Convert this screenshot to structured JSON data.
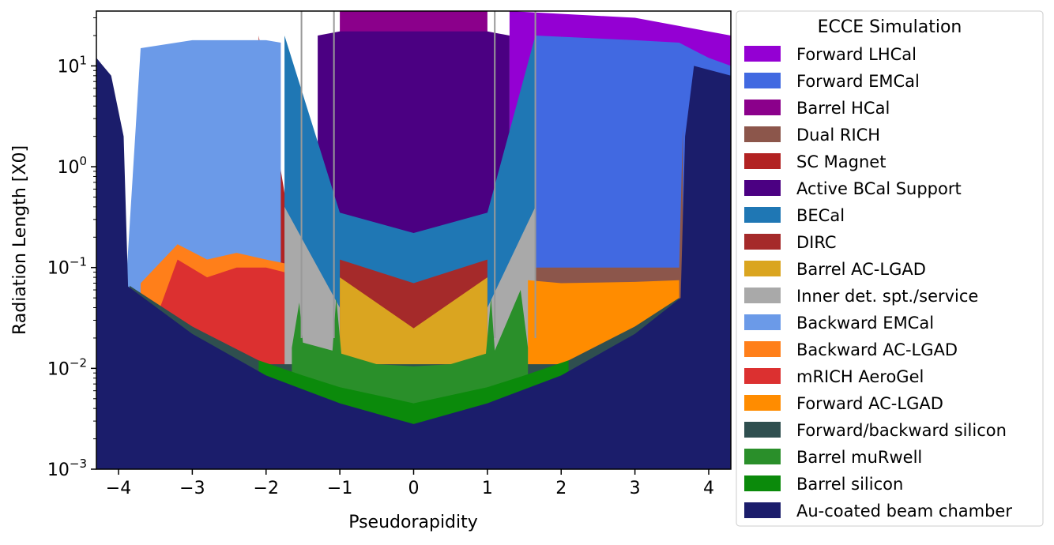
{
  "chart_data": {
    "type": "area",
    "stacked": true,
    "xlabel": "Pseudorapidity",
    "ylabel": "Radiation Length [X0]",
    "xlim": [
      -4.3,
      4.3
    ],
    "ylim": [
      0.001,
      35
    ],
    "yscale": "log",
    "grid": false,
    "x_ticks": [
      {
        "value": -4,
        "label": "−4"
      },
      {
        "value": -3,
        "label": "−3"
      },
      {
        "value": -2,
        "label": "−2"
      },
      {
        "value": -1,
        "label": "−1"
      },
      {
        "value": 0,
        "label": "0"
      },
      {
        "value": 1,
        "label": "1"
      },
      {
        "value": 2,
        "label": "2"
      },
      {
        "value": 3,
        "label": "3"
      },
      {
        "value": 4,
        "label": "4"
      }
    ],
    "y_ticks": [
      {
        "value": 0.001,
        "base": "10",
        "exp": "−3"
      },
      {
        "value": 0.01,
        "base": "10",
        "exp": "−2"
      },
      {
        "value": 0.1,
        "base": "10",
        "exp": "−1"
      },
      {
        "value": 1,
        "base": "10",
        "exp": "0"
      },
      {
        "value": 10,
        "base": "10",
        "exp": "1"
      }
    ],
    "legend": {
      "title": "ECCE Simulation",
      "position": "right-outside"
    },
    "layers": [
      {
        "name": "Au-coated beam chamber",
        "color": "#1b1d6b",
        "cumulative": [
          [
            -4.3,
            12
          ],
          [
            -4.1,
            8
          ],
          [
            -3.93,
            2
          ],
          [
            -3.87,
            0.065
          ],
          [
            -3.0,
            0.022
          ],
          [
            -2.0,
            0.0085
          ],
          [
            -1.0,
            0.0045
          ],
          [
            0,
            0.0028
          ],
          [
            1.0,
            0.0045
          ],
          [
            2.0,
            0.0085
          ],
          [
            3.0,
            0.022
          ],
          [
            3.62,
            0.05
          ],
          [
            3.68,
            2
          ],
          [
            3.8,
            10
          ],
          [
            4.3,
            8
          ]
        ]
      },
      {
        "name": "Barrel silicon",
        "color": "#0b8a0b",
        "cumulative": [
          [
            -2.1,
            0.012
          ],
          [
            -1.5,
            0.0085
          ],
          [
            -1.0,
            0.0065
          ],
          [
            0,
            0.0045
          ],
          [
            1.0,
            0.0065
          ],
          [
            1.5,
            0.0085
          ],
          [
            2.1,
            0.012
          ]
        ]
      },
      {
        "name": "Barrel muRwell",
        "color": "#2a8f2a",
        "cumulative": [
          [
            -1.65,
            0.016
          ],
          [
            -1.55,
            0.045
          ],
          [
            -1.5,
            0.018
          ],
          [
            -1.1,
            0.015
          ],
          [
            -1.05,
            0.05
          ],
          [
            -0.98,
            0.014
          ],
          [
            -0.5,
            0.011
          ],
          [
            0,
            0.0105
          ],
          [
            0.5,
            0.011
          ],
          [
            0.98,
            0.014
          ],
          [
            1.05,
            0.05
          ],
          [
            1.1,
            0.015
          ],
          [
            1.45,
            0.06
          ],
          [
            1.55,
            0.016
          ]
        ]
      },
      {
        "name": "Forward/backward silicon",
        "color": "#2f4f4f",
        "cumulative": [
          [
            -3.85,
            0.066
          ],
          [
            -3.0,
            0.026
          ],
          [
            -2.0,
            0.011
          ],
          [
            2.0,
            0.011
          ],
          [
            3.0,
            0.026
          ],
          [
            3.6,
            0.05
          ]
        ]
      },
      {
        "name": "Forward AC-LGAD",
        "color": "#ff8c00",
        "cumulative": [
          [
            1.55,
            0.075
          ],
          [
            2.0,
            0.07
          ],
          [
            3.0,
            0.072
          ],
          [
            3.6,
            0.075
          ]
        ]
      },
      {
        "name": "mRICH AeroGel",
        "color": "#dc3030",
        "cumulative": [
          [
            -3.5,
            0.03
          ],
          [
            -3.2,
            0.12
          ],
          [
            -2.8,
            0.08
          ],
          [
            -2.4,
            0.1
          ],
          [
            -2.0,
            0.1
          ],
          [
            -1.75,
            0.09
          ]
        ]
      },
      {
        "name": "Backward AC-LGAD",
        "color": "#ff7f1a",
        "cumulative": [
          [
            -3.7,
            0.07
          ],
          [
            -3.2,
            0.17
          ],
          [
            -2.8,
            0.12
          ],
          [
            -2.4,
            0.14
          ],
          [
            -2.0,
            0.12
          ],
          [
            -1.75,
            0.11
          ]
        ]
      },
      {
        "name": "Backward EMCal",
        "color": "#6b9ae8",
        "cumulative": [
          [
            -3.9,
            0.065
          ],
          [
            -3.7,
            15
          ],
          [
            -3.0,
            18
          ],
          [
            -2.0,
            18
          ],
          [
            -1.8,
            17
          ]
        ]
      },
      {
        "name": "Inner det. spt./service",
        "color": "#a9a9a9",
        "cumulative": [
          [
            -1.75,
            0.4
          ],
          [
            -1.0,
            0.04
          ],
          [
            0,
            0.013
          ],
          [
            1.0,
            0.04
          ],
          [
            1.65,
            0.4
          ]
        ]
      },
      {
        "name": "Barrel AC-LGAD",
        "color": "#daa520",
        "cumulative": [
          [
            -1.0,
            0.08
          ],
          [
            0,
            0.025
          ],
          [
            1.0,
            0.08
          ]
        ]
      },
      {
        "name": "DIRC",
        "color": "#a52a2a",
        "cumulative": [
          [
            -1.0,
            0.12
          ],
          [
            0,
            0.07
          ],
          [
            1.0,
            0.12
          ]
        ]
      },
      {
        "name": "BECal",
        "color": "#1f77b4",
        "cumulative": [
          [
            -1.75,
            20
          ],
          [
            -1.0,
            0.35
          ],
          [
            0,
            0.22
          ],
          [
            1.0,
            0.35
          ],
          [
            1.65,
            20
          ]
        ]
      },
      {
        "name": "Active BCal Support",
        "color": "#4b0082",
        "cumulative": [
          [
            -1.3,
            20
          ],
          [
            -1.0,
            22
          ],
          [
            1.0,
            22
          ],
          [
            1.3,
            20
          ]
        ]
      },
      {
        "name": "SC Magnet",
        "color": "#b22222",
        "cumulative": [
          [
            -2.1,
            20
          ],
          [
            -1.75,
            0.55
          ],
          [
            1.65,
            0.55
          ],
          [
            2.0,
            20
          ]
        ]
      },
      {
        "name": "Dual RICH",
        "color": "#8c564b",
        "cumulative": [
          [
            1.65,
            0.1
          ],
          [
            3.0,
            0.1
          ],
          [
            3.6,
            0.1
          ],
          [
            3.65,
            2.5
          ]
        ]
      },
      {
        "name": "Barrel HCal",
        "color": "#8b008b",
        "cumulative": [
          [
            -1.0,
            35
          ],
          [
            1.0,
            35
          ]
        ]
      },
      {
        "name": "Forward EMCal",
        "color": "#4169e1",
        "cumulative": [
          [
            1.65,
            20
          ],
          [
            3.0,
            18
          ],
          [
            3.6,
            17
          ],
          [
            4.0,
            12
          ],
          [
            4.3,
            10
          ]
        ]
      },
      {
        "name": "Forward LHCal",
        "color": "#9400d3",
        "cumulative": [
          [
            1.3,
            35
          ],
          [
            3.0,
            30
          ],
          [
            4.3,
            20
          ]
        ]
      }
    ]
  }
}
